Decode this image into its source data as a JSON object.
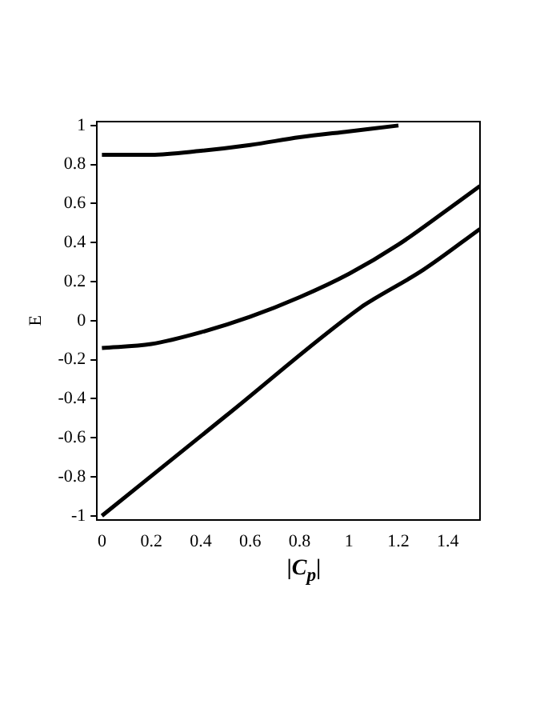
{
  "chart_data": {
    "type": "line",
    "xlabel": "|C$_{p}$|",
    "ylabel": "E",
    "xlim": [
      -0.02,
      1.53
    ],
    "ylim": [
      -1.02,
      1.02
    ],
    "xticks": [
      0,
      0.2,
      0.4,
      0.6,
      0.8,
      1,
      1.2,
      1.4
    ],
    "yticks": [
      -1,
      -0.8,
      -0.6,
      -0.4,
      -0.2,
      0,
      0.2,
      0.4,
      0.6,
      0.8,
      1
    ],
    "grid": false,
    "legend": false,
    "marker": "none",
    "line_style": "solid",
    "series": [
      {
        "color": "#000000",
        "x": [
          0,
          0.2,
          0.4,
          0.6,
          0.8,
          1.0,
          1.2
        ],
        "values": [
          0.85,
          0.85,
          0.87,
          0.9,
          0.94,
          0.97,
          1.0
        ]
      },
      {
        "color": "#000000",
        "x": [
          0,
          0.2,
          0.4,
          0.6,
          0.8,
          1.0,
          1.2,
          1.4,
          1.53
        ],
        "values": [
          -0.14,
          -0.12,
          -0.06,
          0.02,
          0.12,
          0.24,
          0.39,
          0.57,
          0.69
        ]
      },
      {
        "color": "#000000",
        "x": [
          0,
          0.5,
          1.05,
          1.1,
          1.3,
          1.53
        ],
        "values": [
          -1,
          -0.49,
          0.07,
          0.11,
          0.26,
          0.47
        ]
      }
    ]
  }
}
